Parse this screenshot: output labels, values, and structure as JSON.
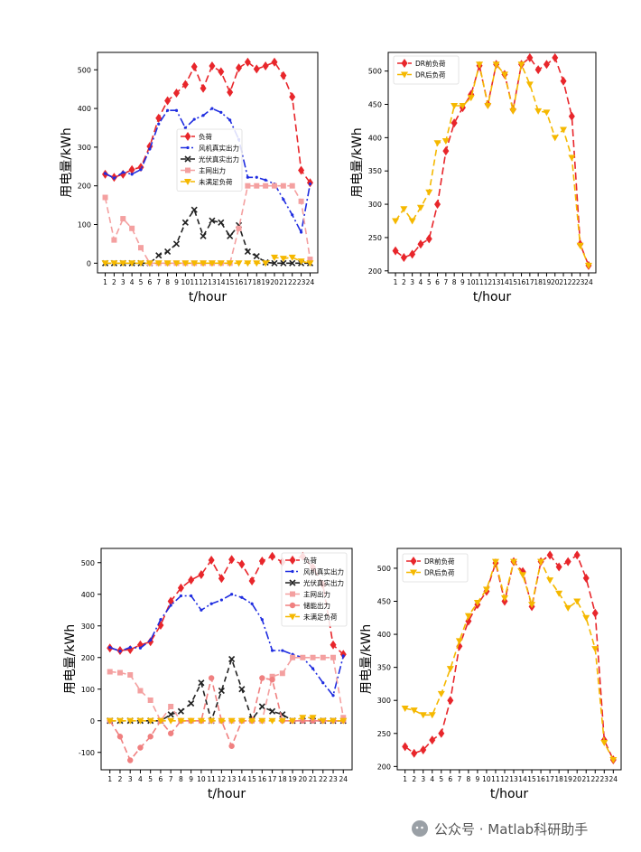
{
  "watermark": {
    "text": "公众号 · Matlab科研助手",
    "icon": "wechat-icon"
  },
  "colors": {
    "load": "#e8262b",
    "wind": "#1f2de0",
    "pv": "#222222",
    "grid": "#f4a0a0",
    "storage": "#f08080",
    "unmet": "#f5b800",
    "dr_after": "#f5b800"
  },
  "chart_data": [
    {
      "id": "top-left",
      "type": "line",
      "xlabel": "t/hour",
      "ylabel": "用电量/kWh",
      "x": [
        1,
        2,
        3,
        4,
        5,
        6,
        7,
        8,
        9,
        10,
        11,
        12,
        13,
        14,
        15,
        16,
        17,
        18,
        19,
        20,
        21,
        22,
        23,
        24
      ],
      "ylim": [
        -25,
        545
      ],
      "yticks": [
        0,
        100,
        200,
        300,
        400,
        500
      ],
      "legend_position": "center",
      "series": [
        {
          "name": "负荷",
          "color": "#e8262b",
          "dash": "8,4",
          "marker": "diamond",
          "values": [
            230,
            222,
            230,
            242,
            248,
            302,
            375,
            420,
            440,
            462,
            508,
            452,
            510,
            495,
            442,
            505,
            520,
            502,
            510,
            520,
            485,
            430,
            240,
            208
          ]
        },
        {
          "name": "风机真实出力",
          "color": "#1f2de0",
          "dash": "9,3,2,3",
          "marker": "dot",
          "values": [
            232,
            220,
            235,
            230,
            242,
            295,
            360,
            395,
            395,
            350,
            372,
            382,
            400,
            390,
            370,
            320,
            222,
            222,
            215,
            205,
            165,
            125,
            80,
            205
          ]
        },
        {
          "name": "光伏真实出力",
          "color": "#222222",
          "dash": "6,4",
          "marker": "x",
          "values": [
            0,
            0,
            0,
            0,
            0,
            0,
            20,
            30,
            50,
            105,
            138,
            70,
            110,
            105,
            70,
            98,
            30,
            18,
            2,
            0,
            0,
            0,
            0,
            0
          ]
        },
        {
          "name": "主网出力",
          "color": "#f4a0a0",
          "dash": "7,4",
          "marker": "square",
          "values": [
            170,
            60,
            115,
            90,
            40,
            0,
            0,
            0,
            0,
            0,
            0,
            0,
            0,
            0,
            0,
            90,
            200,
            200,
            200,
            200,
            200,
            200,
            160,
            10
          ]
        },
        {
          "name": "未满足负荷",
          "color": "#f5b800",
          "dash": "7,4",
          "marker": "tri",
          "values": [
            0,
            0,
            0,
            0,
            0,
            0,
            0,
            0,
            0,
            0,
            0,
            0,
            0,
            0,
            0,
            0,
            0,
            0,
            0,
            15,
            12,
            15,
            5,
            0
          ]
        }
      ]
    },
    {
      "id": "top-right",
      "type": "line",
      "xlabel": "t/hour",
      "ylabel": "用电量/kWh",
      "x": [
        1,
        2,
        3,
        4,
        5,
        6,
        7,
        8,
        9,
        10,
        11,
        12,
        13,
        14,
        15,
        16,
        17,
        18,
        19,
        20,
        21,
        22,
        23,
        24
      ],
      "ylim": [
        197,
        528
      ],
      "yticks": [
        200,
        250,
        300,
        350,
        400,
        450,
        500
      ],
      "legend_position": "top-left",
      "series": [
        {
          "name": "DR前负荷",
          "color": "#e8262b",
          "dash": "8,4",
          "marker": "diamond",
          "values": [
            230,
            220,
            225,
            240,
            248,
            300,
            380,
            422,
            445,
            465,
            508,
            450,
            510,
            495,
            442,
            510,
            520,
            502,
            510,
            520,
            485,
            432,
            240,
            208
          ]
        },
        {
          "name": "DR后负荷",
          "color": "#f5b800",
          "dash": "7,4",
          "marker": "tri",
          "values": [
            275,
            293,
            275,
            295,
            318,
            392,
            395,
            448,
            448,
            460,
            510,
            448,
            510,
            495,
            440,
            510,
            480,
            440,
            438,
            400,
            412,
            370,
            238,
            208
          ]
        }
      ]
    },
    {
      "id": "bottom-left",
      "type": "line",
      "xlabel": "t/hour",
      "ylabel": "用电量/kWh",
      "x": [
        1,
        2,
        3,
        4,
        5,
        6,
        7,
        8,
        9,
        10,
        11,
        12,
        13,
        14,
        15,
        16,
        17,
        18,
        19,
        20,
        21,
        22,
        23,
        24
      ],
      "ylim": [
        -155,
        545
      ],
      "yticks": [
        -100,
        0,
        100,
        200,
        300,
        400,
        500
      ],
      "legend_position": "top-right",
      "series": [
        {
          "name": "负荷",
          "color": "#e8262b",
          "dash": "8,4",
          "marker": "diamond",
          "values": [
            230,
            222,
            225,
            240,
            250,
            302,
            378,
            420,
            445,
            462,
            508,
            450,
            510,
            495,
            442,
            505,
            520,
            502,
            510,
            520,
            485,
            430,
            240,
            210
          ]
        },
        {
          "name": "风机真实出力",
          "color": "#1f2de0",
          "dash": "9,3,2,3",
          "marker": "dot",
          "values": [
            232,
            220,
            232,
            230,
            255,
            320,
            365,
            395,
            395,
            350,
            370,
            382,
            400,
            390,
            370,
            320,
            222,
            222,
            210,
            200,
            165,
            120,
            80,
            205
          ]
        },
        {
          "name": "光伏真实出力",
          "color": "#222222",
          "dash": "6,4",
          "marker": "x",
          "values": [
            0,
            0,
            0,
            0,
            0,
            0,
            20,
            30,
            55,
            120,
            0,
            95,
            195,
            100,
            5,
            45,
            30,
            20,
            0,
            0,
            0,
            0,
            0,
            0
          ]
        },
        {
          "name": "主网出力",
          "color": "#f4a0a0",
          "dash": "7,4",
          "marker": "square",
          "values": [
            155,
            152,
            145,
            95,
            65,
            0,
            45,
            0,
            0,
            0,
            0,
            0,
            0,
            0,
            0,
            0,
            140,
            150,
            200,
            200,
            200,
            200,
            200,
            10
          ]
        },
        {
          "name": "储能出力",
          "color": "#f08080",
          "dash": "7,4",
          "marker": "circle",
          "values": [
            0,
            -50,
            -125,
            -85,
            -50,
            0,
            -40,
            0,
            0,
            0,
            135,
            0,
            -80,
            0,
            0,
            135,
            130,
            0,
            0,
            0,
            0,
            0,
            0,
            0
          ]
        },
        {
          "name": "未满足负荷",
          "color": "#f5b800",
          "dash": "7,4",
          "marker": "tri",
          "values": [
            0,
            0,
            0,
            0,
            0,
            0,
            0,
            0,
            0,
            0,
            0,
            0,
            0,
            0,
            0,
            0,
            0,
            0,
            0,
            10,
            10,
            0,
            0,
            0
          ]
        }
      ]
    },
    {
      "id": "bottom-right",
      "type": "line",
      "xlabel": "t/hour",
      "ylabel": "用电量/kWh",
      "x": [
        1,
        2,
        3,
        4,
        5,
        6,
        7,
        8,
        9,
        10,
        11,
        12,
        13,
        14,
        15,
        16,
        17,
        18,
        19,
        20,
        21,
        22,
        23,
        24
      ],
      "ylim": [
        195,
        530
      ],
      "yticks": [
        200,
        250,
        300,
        350,
        400,
        450,
        500
      ],
      "legend_position": "top-left",
      "series": [
        {
          "name": "DR前负荷",
          "color": "#e8262b",
          "dash": "8,4",
          "marker": "diamond",
          "values": [
            230,
            220,
            225,
            240,
            250,
            300,
            382,
            420,
            445,
            465,
            508,
            450,
            510,
            495,
            442,
            510,
            520,
            502,
            510,
            520,
            485,
            432,
            240,
            210
          ]
        },
        {
          "name": "DR后负荷",
          "color": "#f5b800",
          "dash": "7,4",
          "marker": "tri",
          "values": [
            288,
            285,
            278,
            278,
            310,
            348,
            390,
            428,
            448,
            468,
            510,
            455,
            510,
            490,
            445,
            510,
            482,
            462,
            440,
            450,
            425,
            378,
            236,
            210
          ]
        }
      ]
    }
  ]
}
